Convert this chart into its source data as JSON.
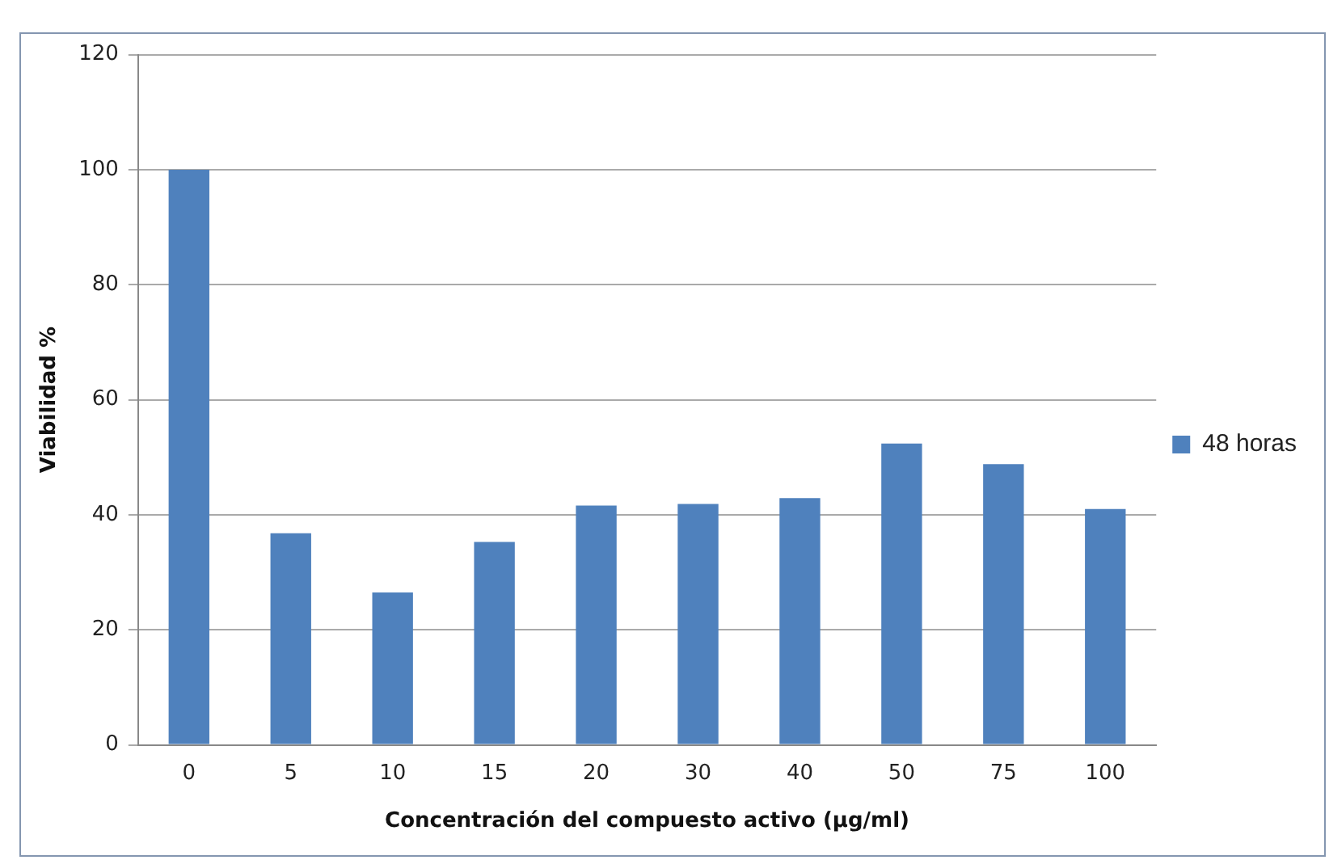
{
  "chart_data": {
    "type": "bar",
    "xlabel": "Concentración del compuesto activo (µg/ml)",
    "ylabel": "Viabilidad %",
    "categories": [
      "0",
      "5",
      "10",
      "15",
      "20",
      "30",
      "40",
      "50",
      "75",
      "100"
    ],
    "series": [
      {
        "name": "48 horas",
        "color": "#4f81bd",
        "values": [
          100,
          36.8,
          26.5,
          35.3,
          41.6,
          41.9,
          42.9,
          52.4,
          48.8,
          41.0
        ]
      }
    ],
    "ylim": [
      0,
      120
    ],
    "yticks": [
      0,
      20,
      40,
      60,
      80,
      100,
      120
    ],
    "grid": "y",
    "legend": "right"
  }
}
